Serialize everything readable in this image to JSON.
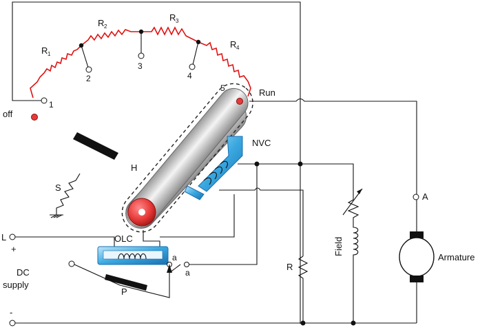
{
  "labels": {
    "r1": "R",
    "r1_sub": "1",
    "r2": "R",
    "r2_sub": "2",
    "r3": "R",
    "r3_sub": "3",
    "r4": "R",
    "r4_sub": "4",
    "stud1": "1",
    "stud2": "2",
    "stud3": "3",
    "stud4": "4",
    "stud5": "5",
    "off": "off",
    "run": "Run",
    "nvc": "NVC",
    "handle": "H",
    "spring": "S",
    "line_terminal": "L",
    "plus": "+",
    "minus": "-",
    "supply_line1": "DC",
    "supply_line2": "supply",
    "olc": "OLC",
    "contact_a1": "a",
    "contact_a2": "a",
    "push": "P",
    "resistor_r": "R",
    "field": "Field",
    "armature_terminal": "A",
    "armature": "Armature"
  },
  "colors": {
    "resistor": "#e01010",
    "pivot": "#e83a3a",
    "coil_blue": "#3aa8e0",
    "wire": "#111111"
  }
}
